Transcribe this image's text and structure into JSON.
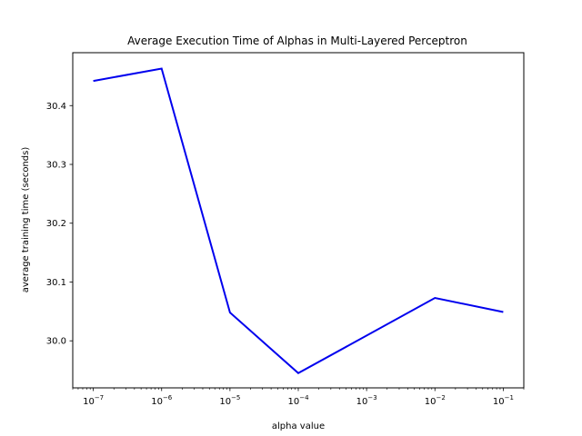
{
  "chart_data": {
    "type": "line",
    "title": "Average Execution Time of Alphas in Multi-Layered Perceptron",
    "xlabel": "alpha value",
    "ylabel": "average training time (seconds)",
    "x_scale": "log",
    "xlim": [
      5e-08,
      0.2
    ],
    "ylim": [
      29.92,
      30.49
    ],
    "x_ticks": [
      {
        "value": 1e-07,
        "base": "10",
        "exp": "−7"
      },
      {
        "value": 1e-06,
        "base": "10",
        "exp": "−6"
      },
      {
        "value": 1e-05,
        "base": "10",
        "exp": "−5"
      },
      {
        "value": 0.0001,
        "base": "10",
        "exp": "−4"
      },
      {
        "value": 0.001,
        "base": "10",
        "exp": "−3"
      },
      {
        "value": 0.01,
        "base": "10",
        "exp": "−2"
      },
      {
        "value": 0.1,
        "base": "10",
        "exp": "−1"
      }
    ],
    "y_ticks": [
      {
        "value": 30.0,
        "label": "30.0"
      },
      {
        "value": 30.1,
        "label": "30.1"
      },
      {
        "value": 30.2,
        "label": "30.2"
      },
      {
        "value": 30.3,
        "label": "30.3"
      },
      {
        "value": 30.4,
        "label": "30.4"
      }
    ],
    "grid": false,
    "legend": "none",
    "series": [
      {
        "color": "#0000ee",
        "x": [
          1e-07,
          1e-06,
          1e-05,
          0.0001,
          0.01,
          0.1
        ],
        "y": [
          30.442,
          30.463,
          30.048,
          29.945,
          30.073,
          30.049
        ]
      }
    ]
  }
}
